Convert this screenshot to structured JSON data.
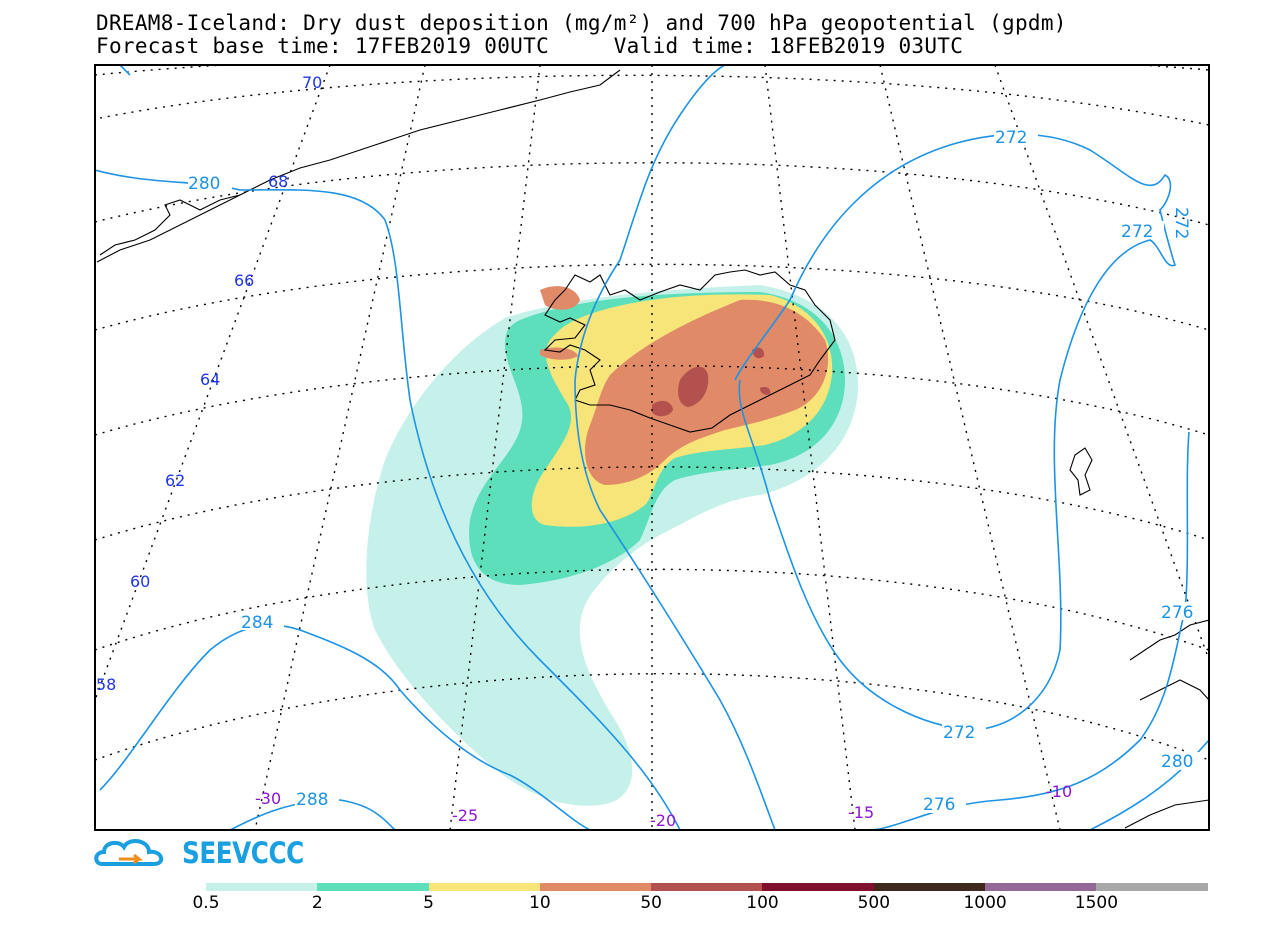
{
  "title": {
    "line1": "DREAM8-Iceland: Dry dust deposition (mg/m²) and 700 hPa geopotential (gpdm)",
    "forecast_label": "Forecast base time: 17FEB2019 00UTC",
    "valid_label": "Valid time: 18FEB2019 03UTC"
  },
  "logo": {
    "text": "SEEVCCC",
    "icon": "cloud-icon"
  },
  "latitude_labels": [
    "70",
    "68",
    "66",
    "64",
    "62",
    "60",
    "58"
  ],
  "longitude_labels": [
    "-30",
    "-25",
    "-20",
    "-15",
    "-10"
  ],
  "contour_labels": {
    "c280a": "280",
    "c272a": "272",
    "c272b": "272",
    "c272c": "272",
    "c284": "284",
    "c288": "288",
    "c276a": "276",
    "c276b": "276",
    "c272d": "272",
    "c280b": "280"
  },
  "colorbar": {
    "colors": [
      "#c6f1ea",
      "#5cdfba",
      "#f8e57a",
      "#e08a68",
      "#b2514e",
      "#7f0f2c",
      "#3f281c",
      "#946997",
      "#a8a8a8"
    ],
    "labels": [
      "0.5",
      "2",
      "5",
      "10",
      "50",
      "100",
      "500",
      "1000",
      "1500"
    ]
  },
  "colors": {
    "contour": "#1c93e5",
    "lat_label": "#1f36e6",
    "lon_label": "#8e14d6",
    "contour_label": "#1c93e5"
  }
}
